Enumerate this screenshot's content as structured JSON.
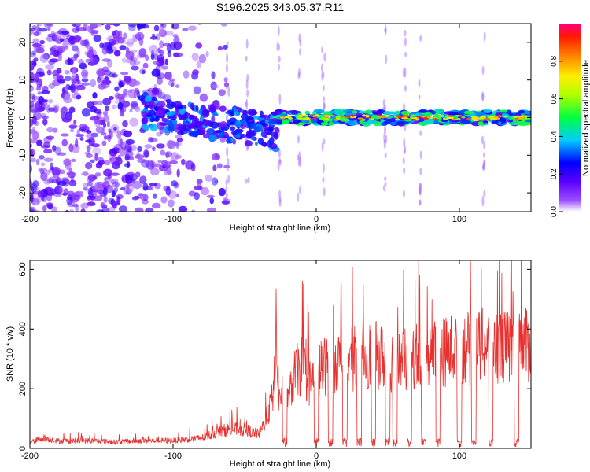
{
  "title": "S196.2025.343.05.37.R11",
  "chart_data": [
    {
      "type": "heatmap",
      "xlabel": "Height of straight line (km)",
      "ylabel": "Frequency (Hz)",
      "xlim": [
        -200,
        150
      ],
      "ylim": [
        -25,
        25
      ],
      "x_ticks": [
        -200,
        -100,
        0,
        100
      ],
      "y_ticks": [
        -20,
        -10,
        0,
        10,
        20
      ],
      "colorbar": {
        "label": "Normalized spectral amplitude",
        "range": [
          0,
          1
        ],
        "ticks": [
          0.0,
          0.2,
          0.4,
          0.6,
          0.8
        ],
        "colors": [
          "#ffffff",
          "#7b00ff",
          "#0000ff",
          "#00ffff",
          "#00ff00",
          "#ffff00",
          "#ff8000",
          "#ff0000",
          "#ff0080"
        ]
      },
      "features": [
        {
          "x_range": [
            -200,
            -100
          ],
          "description_level": "scattered noise",
          "amplitude": 0.15
        },
        {
          "x_range": [
            -120,
            -30
          ],
          "freq_start": 2,
          "freq_end": -4,
          "amplitude": 0.35
        },
        {
          "x_range": [
            -30,
            150
          ],
          "freq": 0,
          "amplitude": 0.75
        }
      ]
    },
    {
      "type": "line",
      "xlabel": "Height of straight line (km)",
      "ylabel": "SNR (10 * v/v)",
      "xlim": [
        -200,
        150
      ],
      "ylim": [
        0,
        630
      ],
      "x_ticks": [
        -200,
        -100,
        0,
        100
      ],
      "y_ticks": [
        0,
        200,
        400,
        600
      ],
      "line_color": "#e8302e",
      "series": [
        {
          "x": [
            -202,
            -190,
            -180,
            -160,
            -140,
            -120,
            -100,
            -80,
            -70,
            -60,
            -50,
            -40,
            -35,
            -30,
            -28,
            -26,
            -22,
            -20,
            -15,
            -10,
            -5,
            0,
            5,
            10,
            20,
            30,
            40,
            50,
            60,
            70,
            80,
            90,
            100,
            110,
            120,
            130,
            140,
            150
          ],
          "values": [
            20,
            40,
            28,
            30,
            25,
            30,
            30,
            40,
            60,
            75,
            70,
            55,
            110,
            200,
            450,
            180,
            260,
            170,
            280,
            320,
            250,
            300,
            310,
            340,
            330,
            350,
            360,
            340,
            330,
            360,
            380,
            370,
            390,
            380,
            400,
            390,
            380,
            400
          ]
        }
      ],
      "dropouts_x": [
        -22,
        0,
        10,
        20,
        30,
        40,
        50,
        55,
        65,
        75,
        85,
        100,
        110,
        122,
        140
      ]
    }
  ]
}
